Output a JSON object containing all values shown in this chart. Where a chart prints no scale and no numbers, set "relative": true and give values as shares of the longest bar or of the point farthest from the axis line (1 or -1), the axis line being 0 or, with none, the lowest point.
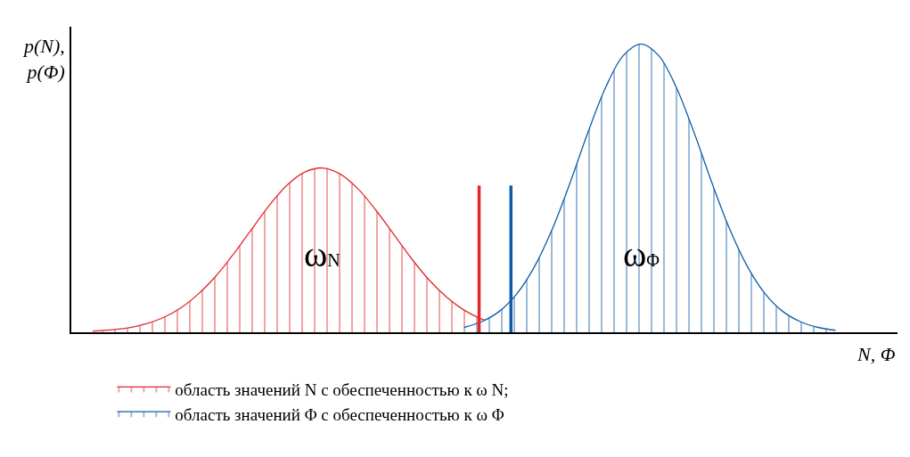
{
  "chart_data": {
    "type": "area",
    "relative": true,
    "categories": [
      null,
      null,
      null,
      null,
      null,
      null,
      null,
      null,
      null,
      null,
      null,
      null,
      null,
      null,
      null,
      null,
      null,
      null,
      null,
      null,
      null,
      null,
      null,
      null,
      null,
      null,
      null,
      null,
      null,
      null,
      null,
      null,
      null,
      null,
      null,
      null,
      null,
      null,
      null,
      null,
      null,
      null,
      null,
      null,
      null,
      null,
      null
    ],
    "series": [
      {
        "name": "область значений N с обеспеченностью к ω N;",
        "color": "#e0282e",
        "values": [
          null,
          0.004,
          0.008,
          0.015,
          0.029,
          0.051,
          0.085,
          0.134,
          0.197,
          0.274,
          0.358,
          0.441,
          0.511,
          0.556,
          0.57,
          0.549,
          0.498,
          0.425,
          0.342,
          0.258,
          0.183,
          0.123,
          0.077,
          0.046,
          0.025,
          0.013,
          null,
          null,
          null,
          null,
          null,
          null,
          null,
          null,
          null,
          null,
          null,
          null,
          null,
          null,
          null,
          null,
          null,
          null,
          null,
          null,
          null
        ]
      },
      {
        "name": "область значений Φ с обеспеченностью к ω Φ",
        "color": "#0f5ca8",
        "values": [
          null,
          null,
          null,
          null,
          null,
          null,
          null,
          null,
          null,
          null,
          null,
          null,
          null,
          null,
          null,
          null,
          null,
          null,
          null,
          null,
          null,
          null,
          0.017,
          0.037,
          0.073,
          0.135,
          0.23,
          0.36,
          0.52,
          0.693,
          0.849,
          0.96,
          1,
          0.96,
          0.849,
          0.693,
          0.52,
          0.36,
          0.23,
          0.135,
          0.073,
          0.037,
          0.017,
          0.007,
          null,
          null,
          null
        ]
      }
    ],
    "annotations": [
      "ω$_{N}$",
      "ω$_{Φ}$"
    ],
    "xlabel": "N, Φ",
    "ylabel": "p(N),\np(Φ)",
    "legend": "bottom left"
  }
}
